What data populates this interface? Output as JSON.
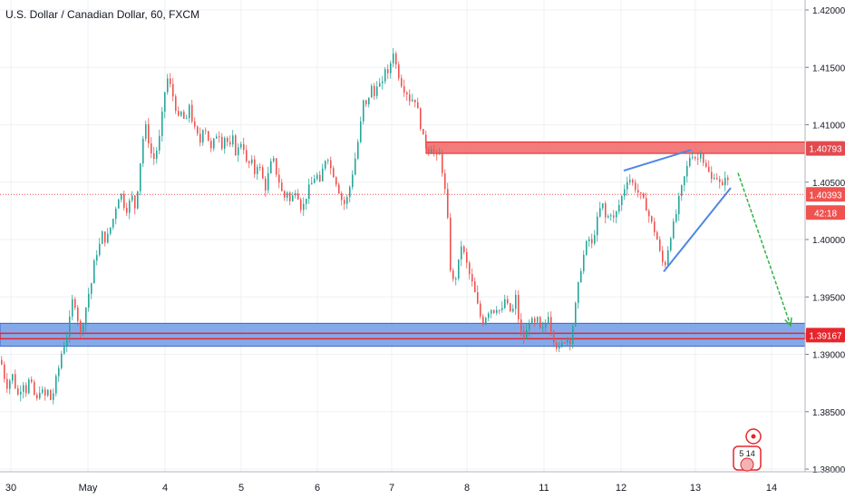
{
  "header": {
    "title": "U.S. Dollar / Canadian Dollar, 60, FXCM"
  },
  "price_axis": {
    "ticks": [
      "1.42000",
      "1.41500",
      "1.41000",
      "1.40500",
      "1.40000",
      "1.39500",
      "1.39000",
      "1.38500",
      "1.38000"
    ],
    "resistance_label": "1.40793",
    "current_price_label": "1.40393",
    "countdown_label": "42:18",
    "support_label": "1.39167"
  },
  "time_axis": {
    "labels": [
      "30",
      "May",
      "4",
      "5",
      "6",
      "7",
      "8",
      "11",
      "12",
      "13",
      "14"
    ]
  },
  "events": {
    "badge_text": "5 14"
  },
  "colors": {
    "bull": "#26a69a",
    "bear": "#ef5350",
    "resistance_fill": "#f05a5a",
    "support_fill": "#6f9ae6",
    "zone_border": "#e6262c",
    "wedge_line": "#4f86e6",
    "target_arrow": "#2fb34a",
    "price_line": "#ef5350",
    "grid": "#eef0f3"
  },
  "chart_data": {
    "type": "candlestick",
    "title": "U.S. Dollar / Canadian Dollar, 60, FXCM",
    "ylim": [
      1.3795,
      1.4205
    ],
    "yticks": [
      1.42,
      1.415,
      1.41,
      1.405,
      1.4,
      1.395,
      1.39,
      1.385,
      1.38
    ],
    "x_labels": [
      "30",
      "May",
      "4",
      "5",
      "6",
      "7",
      "8",
      "11",
      "12",
      "13",
      "14"
    ],
    "current_price": 1.40393,
    "resistance_zone": [
      1.4075,
      1.4085
    ],
    "support_zone": [
      1.3907,
      1.3927
    ],
    "support_line": 1.39167,
    "grid": true,
    "path": [
      [
        0,
        1.3895
      ],
      [
        4,
        1.388
      ],
      [
        8,
        1.387
      ],
      [
        12,
        1.3885
      ],
      [
        16,
        1.3872
      ],
      [
        20,
        1.3862
      ],
      [
        24,
        1.3878
      ],
      [
        28,
        1.3868
      ],
      [
        32,
        1.388
      ],
      [
        36,
        1.3866
      ],
      [
        40,
        1.386
      ],
      [
        44,
        1.3872
      ],
      [
        48,
        1.3862
      ],
      [
        52,
        1.3868
      ],
      [
        56,
        1.3858
      ],
      [
        60,
        1.3875
      ],
      [
        64,
        1.3888
      ],
      [
        68,
        1.3905
      ],
      [
        72,
        1.3912
      ],
      [
        76,
        1.393
      ],
      [
        80,
        1.3952
      ],
      [
        84,
        1.3935
      ],
      [
        88,
        1.3918
      ],
      [
        92,
        1.3932
      ],
      [
        96,
        1.395
      ],
      [
        100,
        1.3962
      ],
      [
        104,
        1.3985
      ],
      [
        108,
        1.3992
      ],
      [
        112,
        1.4005
      ],
      [
        116,
        1.3998
      ],
      [
        120,
        1.4008
      ],
      [
        124,
        1.4018
      ],
      [
        128,
        1.4032
      ],
      [
        132,
        1.4042
      ],
      [
        136,
        1.403
      ],
      [
        140,
        1.4025
      ],
      [
        144,
        1.404
      ],
      [
        148,
        1.4028
      ],
      [
        152,
        1.405
      ],
      [
        156,
        1.4085
      ],
      [
        160,
        1.4098
      ],
      [
        164,
        1.4082
      ],
      [
        168,
        1.4068
      ],
      [
        172,
        1.4078
      ],
      [
        176,
        1.4092
      ],
      [
        180,
        1.4125
      ],
      [
        184,
        1.414
      ],
      [
        188,
        1.4132
      ],
      [
        192,
        1.4118
      ],
      [
        196,
        1.4105
      ],
      [
        200,
        1.4112
      ],
      [
        204,
        1.4098
      ],
      [
        208,
        1.4118
      ],
      [
        212,
        1.41
      ],
      [
        216,
        1.4092
      ],
      [
        220,
        1.4085
      ],
      [
        224,
        1.4102
      ],
      [
        228,
        1.409
      ],
      [
        232,
        1.4078
      ],
      [
        236,
        1.4088
      ],
      [
        240,
        1.4095
      ],
      [
        244,
        1.4082
      ],
      [
        248,
        1.4092
      ],
      [
        252,
        1.4078
      ],
      [
        256,
        1.4088
      ],
      [
        260,
        1.4072
      ],
      [
        264,
        1.4086
      ],
      [
        268,
        1.408
      ],
      [
        272,
        1.4062
      ],
      [
        276,
        1.407
      ],
      [
        280,
        1.4058
      ],
      [
        284,
        1.4068
      ],
      [
        288,
        1.4055
      ],
      [
        292,
        1.4045
      ],
      [
        296,
        1.406
      ],
      [
        300,
        1.4072
      ],
      [
        304,
        1.4058
      ],
      [
        308,
        1.4048
      ],
      [
        312,
        1.4035
      ],
      [
        316,
        1.4042
      ],
      [
        320,
        1.403
      ],
      [
        324,
        1.4045
      ],
      [
        328,
        1.4038
      ],
      [
        332,
        1.4025
      ],
      [
        336,
        1.4035
      ],
      [
        340,
        1.4045
      ],
      [
        344,
        1.405
      ],
      [
        348,
        1.4058
      ],
      [
        352,
        1.4048
      ],
      [
        356,
        1.4065
      ],
      [
        360,
        1.4075
      ],
      [
        364,
        1.4062
      ],
      [
        368,
        1.4055
      ],
      [
        372,
        1.4045
      ],
      [
        376,
        1.4035
      ],
      [
        380,
        1.403
      ],
      [
        384,
        1.4042
      ],
      [
        388,
        1.4058
      ],
      [
        392,
        1.4075
      ],
      [
        396,
        1.4095
      ],
      [
        400,
        1.412
      ],
      [
        404,
        1.4115
      ],
      [
        408,
        1.4135
      ],
      [
        412,
        1.4125
      ],
      [
        416,
        1.414
      ],
      [
        420,
        1.413
      ],
      [
        424,
        1.415
      ],
      [
        428,
        1.414
      ],
      [
        432,
        1.4168
      ],
      [
        436,
        1.4152
      ],
      [
        440,
        1.414
      ],
      [
        444,
        1.4132
      ],
      [
        448,
        1.4128
      ],
      [
        452,
        1.412
      ],
      [
        456,
        1.4125
      ],
      [
        460,
        1.4112
      ],
      [
        464,
        1.4095
      ],
      [
        468,
        1.4082
      ],
      [
        472,
        1.4078
      ],
      [
        476,
        1.4082
      ],
      [
        480,
        1.407
      ],
      [
        484,
        1.4075
      ],
      [
        488,
        1.4055
      ],
      [
        492,
        1.403
      ],
      [
        496,
        1.3975
      ],
      [
        500,
        1.396
      ],
      [
        504,
        1.3975
      ],
      [
        508,
        1.3995
      ],
      [
        512,
        1.3985
      ],
      [
        516,
        1.3972
      ],
      [
        520,
        1.3962
      ],
      [
        524,
        1.395
      ],
      [
        528,
        1.3935
      ],
      [
        532,
        1.3928
      ],
      [
        536,
        1.3935
      ],
      [
        540,
        1.394
      ],
      [
        544,
        1.3938
      ],
      [
        548,
        1.3942
      ],
      [
        552,
        1.3935
      ],
      [
        556,
        1.3948
      ],
      [
        560,
        1.394
      ],
      [
        564,
        1.3935
      ],
      [
        568,
        1.395
      ],
      [
        572,
        1.3925
      ],
      [
        576,
        1.3912
      ],
      [
        580,
        1.392
      ],
      [
        584,
        1.3932
      ],
      [
        588,
        1.3925
      ],
      [
        592,
        1.393
      ],
      [
        596,
        1.3918
      ],
      [
        600,
        1.3925
      ],
      [
        604,
        1.3935
      ],
      [
        608,
        1.3918
      ],
      [
        612,
        1.3908
      ],
      [
        616,
        1.3905
      ],
      [
        620,
        1.391
      ],
      [
        624,
        1.3915
      ],
      [
        628,
        1.3912
      ],
      [
        632,
        1.393
      ],
      [
        636,
        1.3955
      ],
      [
        640,
        1.3975
      ],
      [
        644,
        1.399
      ],
      [
        648,
        1.4002
      ],
      [
        652,
        1.3995
      ],
      [
        656,
        1.401
      ],
      [
        660,
        1.4025
      ],
      [
        664,
        1.403
      ],
      [
        668,
        1.4015
      ],
      [
        672,
        1.4025
      ],
      [
        676,
        1.4018
      ],
      [
        680,
        1.4025
      ],
      [
        684,
        1.4035
      ],
      [
        688,
        1.4045
      ],
      [
        692,
        1.4055
      ],
      [
        696,
        1.405
      ],
      [
        700,
        1.4045
      ],
      [
        704,
        1.404
      ],
      [
        708,
        1.4035
      ],
      [
        712,
        1.4028
      ],
      [
        716,
        1.4018
      ],
      [
        720,
        1.401
      ],
      [
        724,
        1.4
      ],
      [
        728,
        1.3985
      ],
      [
        732,
        1.3975
      ],
      [
        736,
        1.3992
      ],
      [
        740,
        1.4008
      ],
      [
        744,
        1.4018
      ],
      [
        748,
        1.4035
      ],
      [
        752,
        1.4048
      ],
      [
        756,
        1.406
      ],
      [
        760,
        1.4072
      ],
      [
        764,
        1.4075
      ],
      [
        768,
        1.4068
      ],
      [
        772,
        1.4078
      ],
      [
        776,
        1.4065
      ],
      [
        780,
        1.406
      ],
      [
        784,
        1.4052
      ],
      [
        788,
        1.4058
      ],
      [
        792,
        1.405
      ],
      [
        796,
        1.4045
      ],
      [
        800,
        1.406
      ],
      [
        804,
        1.404
      ]
    ],
    "annotations": {
      "wedge_upper": [
        [
          688,
          1.406
        ],
        [
          762,
          1.4078
        ]
      ],
      "wedge_lower": [
        [
          732,
          1.3972
        ],
        [
          806,
          1.4045
        ]
      ],
      "target_arrow": [
        [
          814,
          1.4058
        ],
        [
          872,
          1.3925
        ]
      ]
    }
  }
}
